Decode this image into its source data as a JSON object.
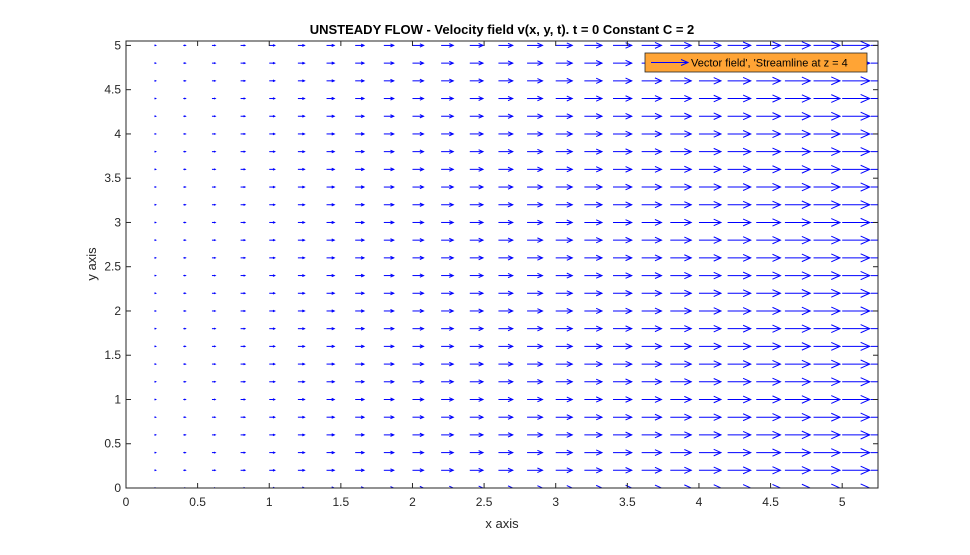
{
  "chart_data": {
    "type": "quiver",
    "title": "UNSTEADY FLOW - Velocity field v(x, y, t). t = 0  Constant C = 2",
    "xlabel": "x axis",
    "ylabel": "y axis",
    "xlim": [
      0,
      5.25
    ],
    "ylim": [
      0,
      5.05
    ],
    "xticks": [
      "0",
      "0.5",
      "1",
      "1.5",
      "2",
      "2.5",
      "3",
      "3.5",
      "4",
      "4.5",
      "5"
    ],
    "yticks": [
      "0",
      "0.5",
      "1",
      "1.5",
      "2",
      "2.5",
      "3",
      "3.5",
      "4",
      "4.5",
      "5"
    ],
    "xtick_values": [
      0,
      0.5,
      1,
      1.5,
      2,
      2.5,
      3,
      3.5,
      4,
      4.5,
      5
    ],
    "ytick_values": [
      0,
      0.5,
      1,
      1.5,
      2,
      2.5,
      3,
      3.5,
      4,
      4.5,
      5
    ],
    "grid": {
      "x_start": 0.2,
      "x_step": 0.2,
      "y_start": 0,
      "y_step": 0.2,
      "count_x": 26,
      "count_y": 26
    },
    "field": {
      "u": "C*x",
      "v": "0",
      "C": 2
    },
    "series": [
      {
        "name": "Vector field', 'Streamline at z = 4",
        "color": "#0000ff"
      }
    ],
    "legend": {
      "placement": "top-right",
      "background": "#ffa435",
      "line_color": "#0000ff"
    },
    "grid_on": false
  }
}
